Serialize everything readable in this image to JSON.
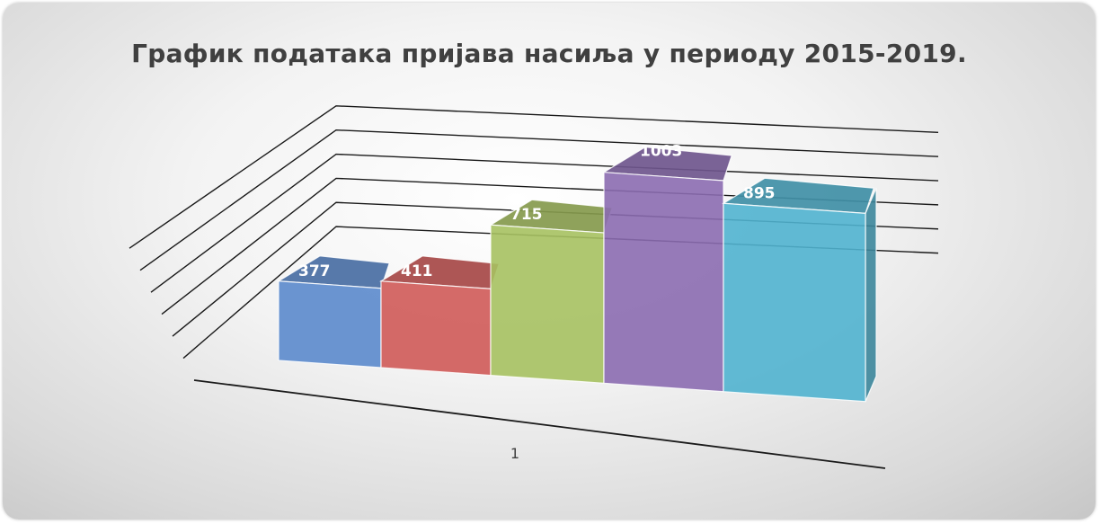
{
  "chart_data": {
    "type": "bar",
    "title": "График података пријава насиља у периоду 2015-2019.",
    "categories": [
      "1"
    ],
    "series": [
      {
        "values": [
          377
        ],
        "color": "#5b89cc"
      },
      {
        "values": [
          411
        ],
        "color": "#cf5a58"
      },
      {
        "values": [
          715
        ],
        "color": "#a6c160"
      },
      {
        "values": [
          1003
        ],
        "color": "#8b6bb0"
      },
      {
        "values": [
          895
        ],
        "color": "#50b3cf"
      }
    ],
    "data_labels": [
      "377",
      "411",
      "715",
      "1003",
      "895"
    ],
    "ylim": [
      0,
      1200
    ],
    "grid": true,
    "legend": "none",
    "style": "3d-column"
  }
}
